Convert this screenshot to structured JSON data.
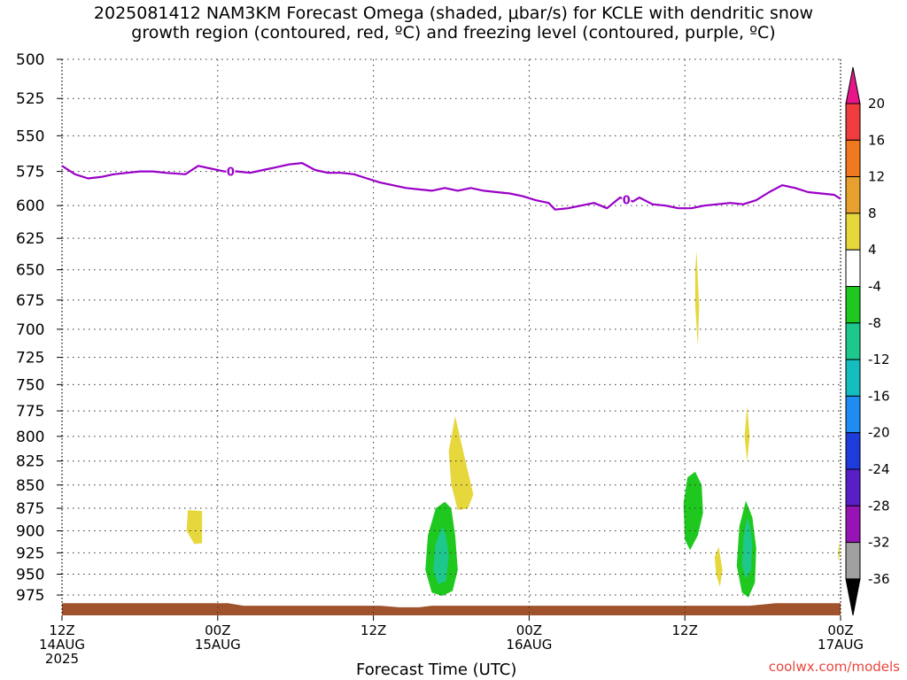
{
  "title": {
    "line1": "2025081412 NAM3KM Forecast Omega (shaded, μbar/s) for KCLE with dendritic snow",
    "line2": "growth region (contoured, red, ºC) and freezing level (contoured, purple, ºC)"
  },
  "credit": "coolwx.com/models",
  "chart_data": {
    "type": "time-height cross section (contour)",
    "xlabel": "Forecast Time (UTC)",
    "x_range_hours": [
      0,
      60
    ],
    "x_ticks": [
      {
        "hour": 0,
        "lines": [
          "12Z",
          "14AUG",
          "2025"
        ]
      },
      {
        "hour": 12,
        "lines": [
          "00Z",
          "15AUG"
        ]
      },
      {
        "hour": 24,
        "lines": [
          "12Z"
        ]
      },
      {
        "hour": 36,
        "lines": [
          "00Z",
          "16AUG"
        ]
      },
      {
        "hour": 48,
        "lines": [
          "12Z"
        ]
      },
      {
        "hour": 60,
        "lines": [
          "00Z",
          "17AUG"
        ]
      }
    ],
    "y_axis": {
      "unit": "hPa",
      "scale": "log-pressure (inverted)",
      "range": [
        500,
        1000
      ],
      "ticks": [
        500,
        525,
        550,
        575,
        600,
        625,
        650,
        675,
        700,
        725,
        750,
        775,
        800,
        825,
        850,
        875,
        900,
        925,
        950,
        975
      ]
    },
    "grid": true,
    "colorbar": {
      "label_values": [
        20,
        16,
        12,
        8,
        4,
        -4,
        -8,
        -12,
        -16,
        -20,
        -24,
        -28,
        -32,
        -36
      ],
      "bins": [
        {
          "range": ">20",
          "color": "#e8158a"
        },
        {
          "range": "16 to 20",
          "color": "#f03c3c"
        },
        {
          "range": "12 to 16",
          "color": "#f0781e"
        },
        {
          "range": "8 to 12",
          "color": "#e6a02d"
        },
        {
          "range": "4 to 8",
          "color": "#e6d73c"
        },
        {
          "range": "-4 to 4",
          "color": "#ffffff"
        },
        {
          "range": "-8 to -4",
          "color": "#1ec81e"
        },
        {
          "range": "-12 to -8",
          "color": "#1ec88c"
        },
        {
          "range": "-16 to -12",
          "color": "#14bebe"
        },
        {
          "range": "-20 to -16",
          "color": "#1e8cf0"
        },
        {
          "range": "-24 to -20",
          "color": "#1e3cdc"
        },
        {
          "range": "-28 to -24",
          "color": "#5a1ec8"
        },
        {
          "range": "-32 to -28",
          "color": "#9614b4"
        },
        {
          "range": "-36 to -32",
          "color": "#a0a0a0"
        },
        {
          "range": "<-36",
          "color": "#000000"
        }
      ]
    },
    "freezing_level": {
      "label": "0",
      "color": "#9a00c8",
      "points": [
        [
          0,
          571
        ],
        [
          1,
          577
        ],
        [
          2,
          580
        ],
        [
          3,
          579
        ],
        [
          4,
          577
        ],
        [
          5,
          576
        ],
        [
          6,
          575
        ],
        [
          7,
          575
        ],
        [
          8,
          576
        ],
        [
          9.5,
          577
        ],
        [
          10.5,
          571
        ],
        [
          11.5,
          573
        ],
        [
          12.5,
          575
        ],
        [
          13.5,
          575
        ],
        [
          14.5,
          576
        ],
        [
          15.5,
          574
        ],
        [
          16.5,
          572
        ],
        [
          17.5,
          570
        ],
        [
          18.5,
          569
        ],
        [
          19.5,
          574
        ],
        [
          20.5,
          576
        ],
        [
          21.5,
          576
        ],
        [
          22.5,
          577
        ],
        [
          23.5,
          580
        ],
        [
          24.5,
          583
        ],
        [
          25.5,
          585
        ],
        [
          26.5,
          587
        ],
        [
          27.5,
          588
        ],
        [
          28.5,
          589
        ],
        [
          29.5,
          587
        ],
        [
          30.5,
          589
        ],
        [
          31.5,
          587
        ],
        [
          32.5,
          589
        ],
        [
          33.5,
          590
        ],
        [
          34.5,
          591
        ],
        [
          35.5,
          593
        ],
        [
          36.5,
          596
        ],
        [
          37.5,
          598
        ],
        [
          38,
          603
        ],
        [
          39,
          602
        ],
        [
          40,
          600
        ],
        [
          41,
          598
        ],
        [
          42,
          602
        ],
        [
          43,
          594
        ],
        [
          44,
          597
        ],
        [
          44.5,
          594
        ],
        [
          45.5,
          599
        ],
        [
          46.5,
          600
        ],
        [
          47.5,
          602
        ],
        [
          48.5,
          602
        ],
        [
          49.5,
          600
        ],
        [
          50.5,
          599
        ],
        [
          51.5,
          598
        ],
        [
          52.5,
          599
        ],
        [
          53.5,
          596
        ],
        [
          54.5,
          590
        ],
        [
          55.5,
          585
        ],
        [
          56.5,
          587
        ],
        [
          57.5,
          590
        ],
        [
          58.5,
          591
        ],
        [
          59.5,
          592
        ],
        [
          60,
          595
        ]
      ]
    },
    "omega_regions": [
      {
        "bin": "4 to 8",
        "color": "#e6d73c",
        "points": [
          [
            9.7,
            877
          ],
          [
            10.8,
            878
          ],
          [
            10.8,
            914
          ],
          [
            10.2,
            915
          ],
          [
            9.6,
            900
          ]
        ]
      },
      {
        "bin": "4 to 8",
        "color": "#e6d73c",
        "points": [
          [
            30.3,
            780
          ],
          [
            31,
            820
          ],
          [
            31.7,
            860
          ],
          [
            31.3,
            875
          ],
          [
            30.5,
            877
          ],
          [
            30.0,
            850
          ],
          [
            29.8,
            815
          ]
        ]
      },
      {
        "bin": "-8 to -4",
        "color": "#1ec81e",
        "points": [
          [
            29.5,
            868
          ],
          [
            28.8,
            875
          ],
          [
            28.2,
            905
          ],
          [
            28.0,
            945
          ],
          [
            28.5,
            972
          ],
          [
            29.3,
            976
          ],
          [
            30.1,
            970
          ],
          [
            30.5,
            945
          ],
          [
            30.3,
            905
          ],
          [
            30.0,
            875
          ]
        ]
      },
      {
        "bin": "-12 to -8",
        "color": "#1ec88c",
        "points": [
          [
            29.3,
            895
          ],
          [
            28.8,
            915
          ],
          [
            28.6,
            945
          ],
          [
            29.0,
            962
          ],
          [
            29.6,
            958
          ],
          [
            29.8,
            930
          ],
          [
            29.6,
            905
          ]
        ]
      },
      {
        "bin": "4 to 8",
        "color": "#e6d73c",
        "points": [
          [
            48.9,
            635
          ],
          [
            49.1,
            680
          ],
          [
            49.0,
            715
          ],
          [
            48.8,
            680
          ],
          [
            48.8,
            650
          ]
        ]
      },
      {
        "bin": "4 to 8",
        "color": "#e6d73c",
        "points": [
          [
            52.8,
            770
          ],
          [
            53.0,
            800
          ],
          [
            52.8,
            825
          ],
          [
            52.6,
            800
          ]
        ]
      },
      {
        "bin": "-8 to -4",
        "color": "#1ec81e",
        "points": [
          [
            48.8,
            836
          ],
          [
            48.2,
            842
          ],
          [
            47.9,
            870
          ],
          [
            48.0,
            910
          ],
          [
            48.4,
            922
          ],
          [
            49.0,
            905
          ],
          [
            49.4,
            880
          ],
          [
            49.3,
            850
          ]
        ]
      },
      {
        "bin": "4 to 8",
        "color": "#e6d73c",
        "points": [
          [
            50.6,
            918
          ],
          [
            50.9,
            945
          ],
          [
            50.7,
            965
          ],
          [
            50.4,
            950
          ],
          [
            50.3,
            930
          ]
        ]
      },
      {
        "bin": "-8 to -4",
        "color": "#1ec81e",
        "points": [
          [
            52.7,
            867
          ],
          [
            52.2,
            895
          ],
          [
            52.0,
            940
          ],
          [
            52.4,
            972
          ],
          [
            52.9,
            978
          ],
          [
            53.4,
            960
          ],
          [
            53.5,
            920
          ],
          [
            53.2,
            885
          ]
        ]
      },
      {
        "bin": "-12 to -8",
        "color": "#1ec88c",
        "points": [
          [
            52.8,
            885
          ],
          [
            52.5,
            910
          ],
          [
            52.4,
            940
          ],
          [
            52.7,
            955
          ],
          [
            53.1,
            945
          ],
          [
            53.2,
            915
          ],
          [
            53.0,
            893
          ]
        ]
      },
      {
        "bin": "4 to 8",
        "color": "#e6d73c",
        "points": [
          [
            59.9,
            912
          ],
          [
            59.95,
            925
          ],
          [
            59.85,
            935
          ],
          [
            59.8,
            925
          ]
        ]
      }
    ],
    "terrain": {
      "color": "#a0522d",
      "points": [
        [
          0,
          985
        ],
        [
          12.8,
          985
        ],
        [
          14,
          988
        ],
        [
          24.5,
          988
        ],
        [
          26,
          990
        ],
        [
          27.5,
          990
        ],
        [
          28.5,
          988
        ],
        [
          53,
          988
        ],
        [
          55,
          985
        ],
        [
          60,
          985
        ]
      ]
    }
  }
}
